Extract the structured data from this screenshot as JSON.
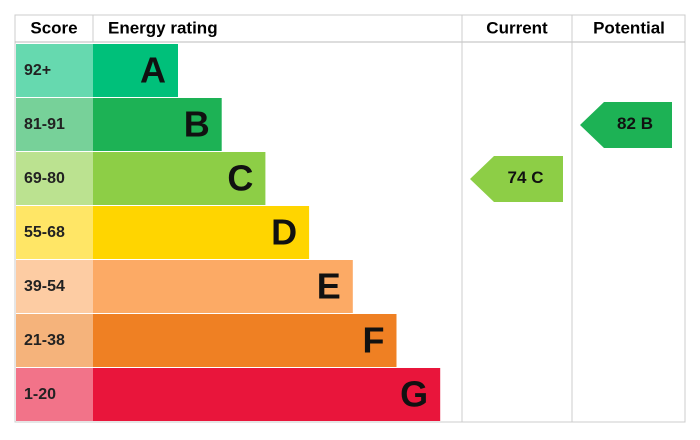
{
  "chart_data": {
    "type": "epc",
    "headers": {
      "score": "Score",
      "rating": "Energy rating",
      "current": "Current",
      "potential": "Potential"
    },
    "bands": [
      {
        "score": "92+",
        "letter": "A",
        "color": "#00c07a"
      },
      {
        "score": "81-91",
        "letter": "B",
        "color": "#1db255"
      },
      {
        "score": "69-80",
        "letter": "C",
        "color": "#8dce46"
      },
      {
        "score": "55-68",
        "letter": "D",
        "color": "#ffd500"
      },
      {
        "score": "39-54",
        "letter": "E",
        "color": "#fcaa65"
      },
      {
        "score": "21-38",
        "letter": "F",
        "color": "#ef8023"
      },
      {
        "score": "1-20",
        "letter": "G",
        "color": "#e9153b"
      }
    ],
    "current": {
      "value": 74,
      "rating": "C"
    },
    "potential": {
      "value": 82,
      "rating": "B"
    }
  }
}
